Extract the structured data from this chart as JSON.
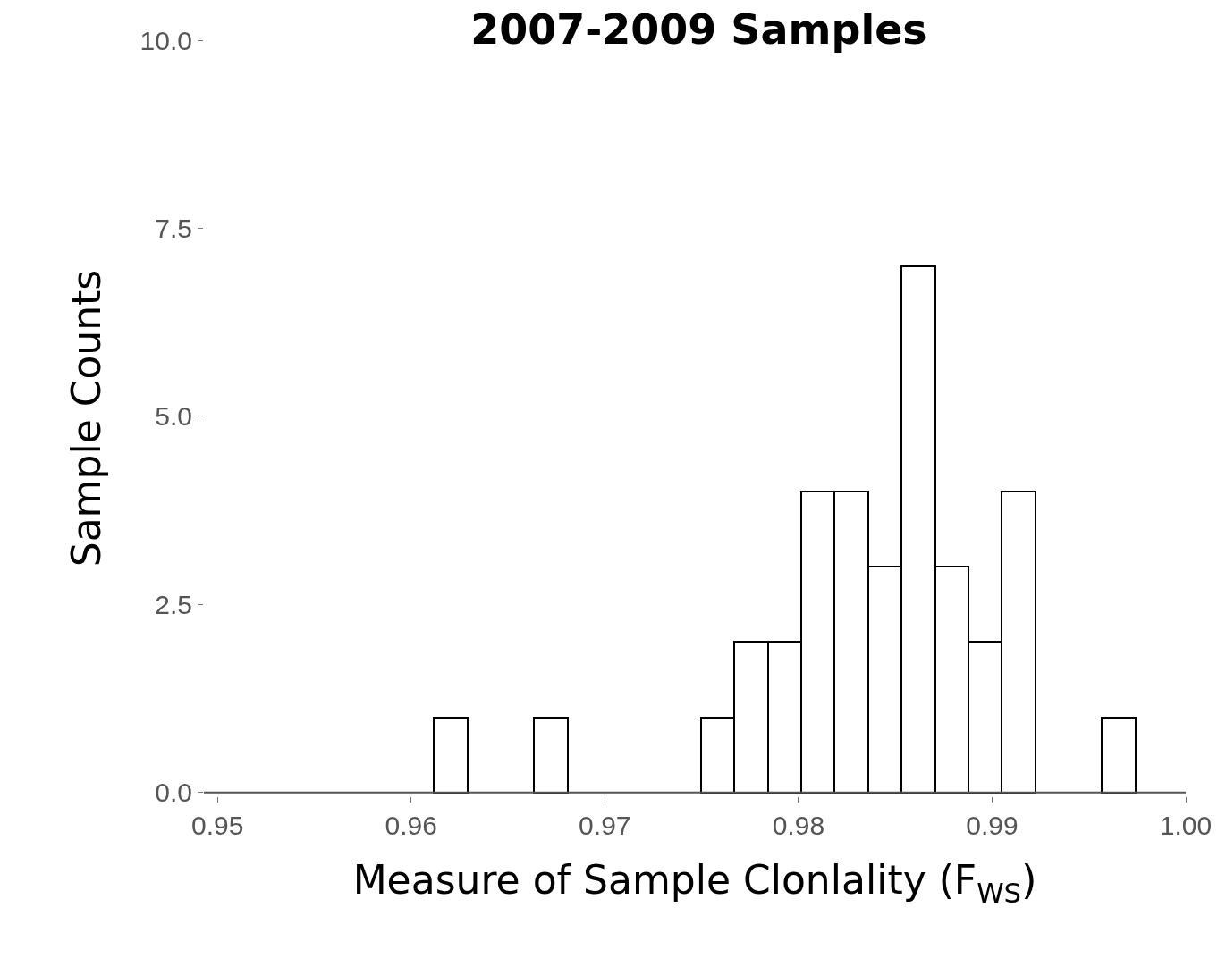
{
  "chart_data": {
    "type": "histogram",
    "title": "2007-2009 Samples",
    "xlabel": "Measure of Sample Clonlality (F$_{WS}$)",
    "ylabel": "Sample Counts",
    "bins": [
      0.96117,
      0.9629,
      0.96462,
      0.96635,
      0.96807,
      0.9698,
      0.97152,
      0.97325,
      0.97497,
      0.9767,
      0.97842,
      0.98015,
      0.98187,
      0.9836,
      0.98532,
      0.98705,
      0.98877,
      0.9905,
      0.99222,
      0.99395,
      0.99567,
      0.9974
    ],
    "values": [
      1,
      0,
      0,
      1,
      0,
      0,
      0,
      0,
      1,
      2,
      2,
      4,
      4,
      3,
      7,
      3,
      2,
      4,
      0,
      0,
      1
    ],
    "color": "#ffffff",
    "xlim": [
      0.9493,
      1.0
    ],
    "xticks": [
      0.95,
      0.96,
      0.97,
      0.98,
      0.99,
      {
        "value": 1.0,
        "label": "1.00"
      }
    ],
    "ylim": [
      -0.05,
      10.0
    ],
    "yticks": [
      {
        "value": 0,
        "label": "0.0"
      },
      2.5,
      {
        "value": 5,
        "label": "5.0"
      },
      7.5,
      {
        "value": 10,
        "label": "10.0"
      }
    ]
  }
}
